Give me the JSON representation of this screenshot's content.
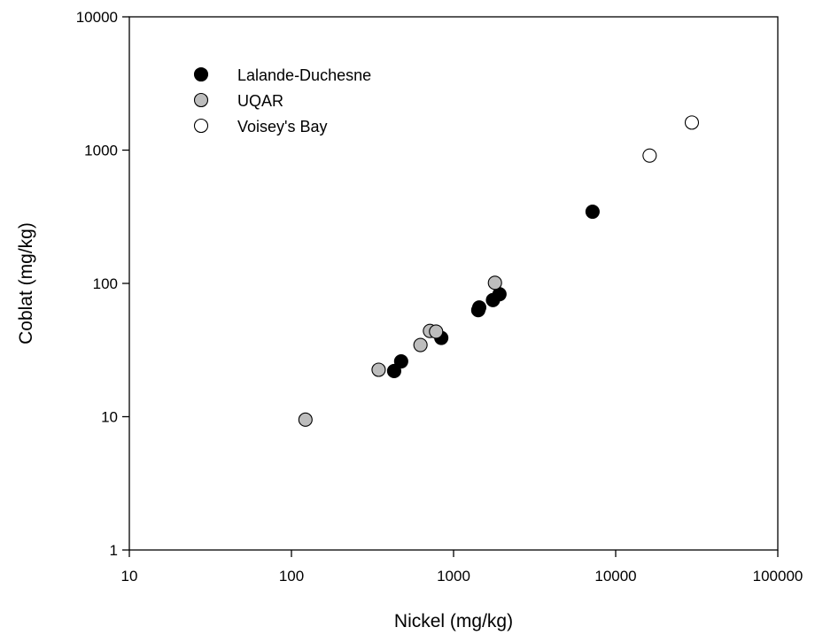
{
  "chart_data": {
    "type": "scatter",
    "title": "",
    "xlabel": "Nickel (mg/kg)",
    "ylabel": "Coblat (mg/kg)",
    "x_scale": "log",
    "y_scale": "log",
    "xlim": [
      10,
      100000
    ],
    "ylim": [
      1,
      10000
    ],
    "x_ticks": [
      10,
      100,
      1000,
      10000,
      100000
    ],
    "y_ticks": [
      1,
      10,
      100,
      1000,
      10000
    ],
    "x_tick_labels": [
      "10",
      "100",
      "1000",
      "10000",
      "100000"
    ],
    "y_tick_labels": [
      "1",
      "10",
      "100",
      "1000",
      "10000"
    ],
    "grid": false,
    "legend_position": "top-left",
    "series": [
      {
        "name": "Lalande-Duchesne",
        "color": "#000000",
        "points": [
          {
            "x": 430,
            "y": 22
          },
          {
            "x": 475,
            "y": 26
          },
          {
            "x": 840,
            "y": 39
          },
          {
            "x": 1420,
            "y": 63
          },
          {
            "x": 1440,
            "y": 66
          },
          {
            "x": 1750,
            "y": 75
          },
          {
            "x": 1920,
            "y": 83
          },
          {
            "x": 7200,
            "y": 345
          }
        ]
      },
      {
        "name": "UQAR",
        "color": "#bdbdbd",
        "points": [
          {
            "x": 122,
            "y": 9.5
          },
          {
            "x": 345,
            "y": 22.5
          },
          {
            "x": 625,
            "y": 34.5
          },
          {
            "x": 715,
            "y": 44
          },
          {
            "x": 780,
            "y": 43.5
          },
          {
            "x": 1800,
            "y": 101
          }
        ]
      },
      {
        "name": "Voisey's Bay",
        "color": "#ffffff",
        "points": [
          {
            "x": 16200,
            "y": 910
          },
          {
            "x": 29500,
            "y": 1610
          }
        ]
      }
    ]
  }
}
